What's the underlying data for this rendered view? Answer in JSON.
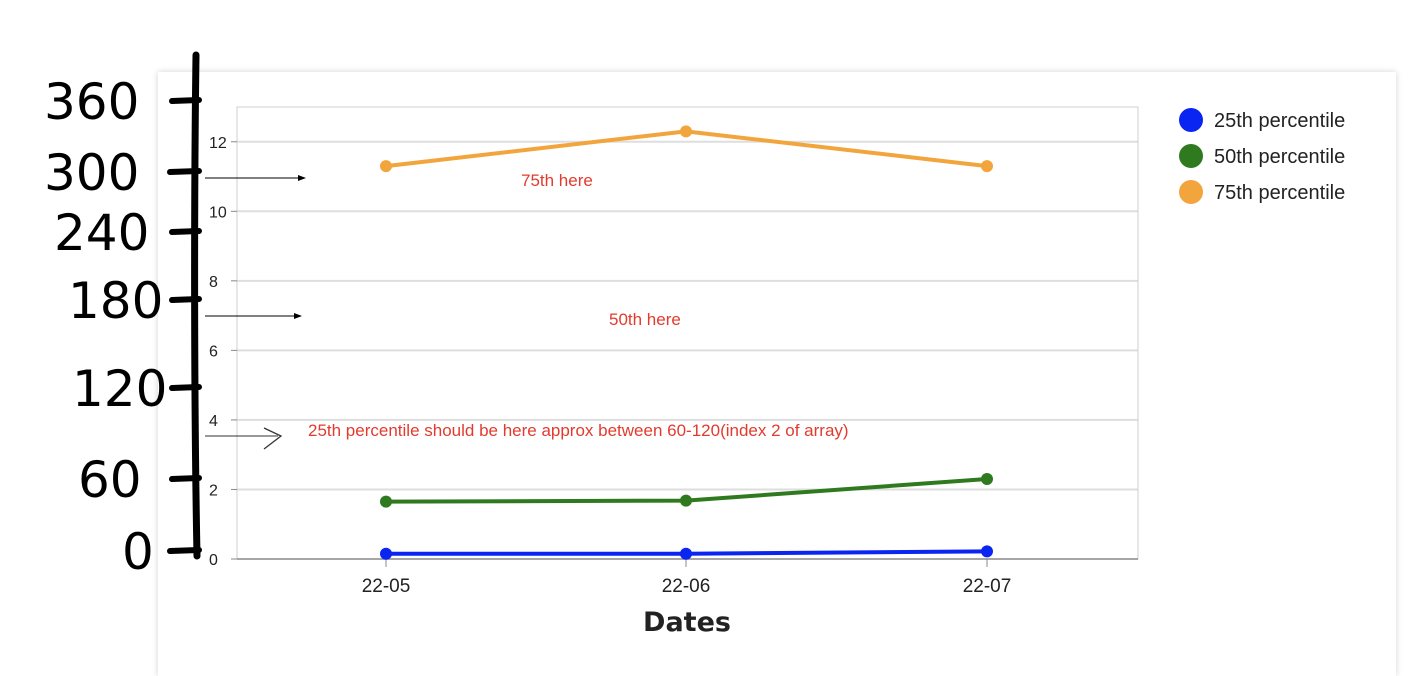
{
  "chart_data": {
    "type": "line",
    "categories": [
      "22-05",
      "22-06",
      "22-07"
    ],
    "series": [
      {
        "name": "25th percentile",
        "values": [
          0.15,
          0.15,
          0.22
        ],
        "color": "#0a24f2"
      },
      {
        "name": "50th percentile",
        "values": [
          1.65,
          1.68,
          2.3
        ],
        "color": "#2f7a1f"
      },
      {
        "name": "75th percentile",
        "values": [
          11.3,
          12.3,
          11.3
        ],
        "color": "#f2a53c"
      }
    ],
    "xlabel": "Dates",
    "ylabel": "",
    "ylim": [
      0,
      13
    ],
    "yticks": [
      0,
      2,
      4,
      6,
      8,
      10,
      12
    ],
    "grid": true,
    "legend_position": "right",
    "annotations": [
      "75th here",
      "50th  here",
      "25th percentile should be here approx between 60-120(index 2 of array)"
    ],
    "handwritten_axis_labels": [
      "360",
      "300",
      "240",
      "180",
      "120",
      "60",
      "0"
    ]
  }
}
